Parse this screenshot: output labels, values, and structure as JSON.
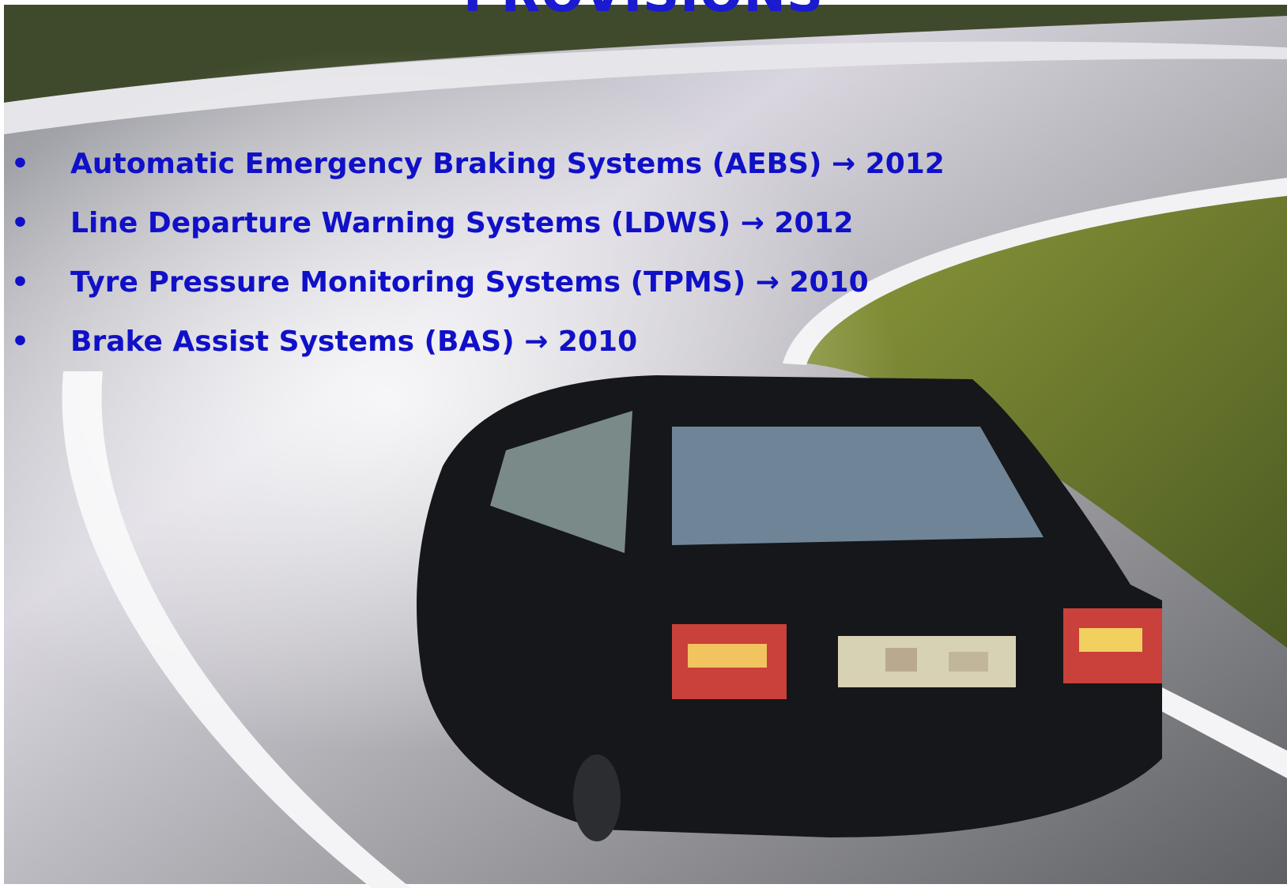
{
  "title": "PROVISIONS",
  "items": [
    "Automatic Emergency Braking Systems (AEBS) → 2012",
    "Line Departure Warning Systems (LDWS) → 2012",
    "Tyre Pressure Monitoring Systems (TPMS) → 2010",
    "Brake Assist Systems (BAS) → 2010"
  ]
}
